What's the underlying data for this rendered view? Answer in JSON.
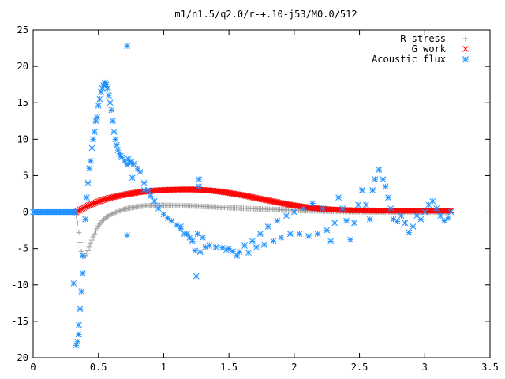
{
  "chart_data": {
    "type": "scatter",
    "title": "m1/n1.5/q2.0/r-+.10-j53/M0.0/512",
    "xlabel": "",
    "ylabel": "",
    "xlim": [
      0,
      3.5
    ],
    "ylim": [
      -20,
      25
    ],
    "x_ticks": [
      0,
      0.5,
      1,
      1.5,
      2,
      2.5,
      3,
      3.5
    ],
    "y_ticks": [
      -20,
      -15,
      -10,
      -5,
      0,
      5,
      10,
      15,
      20,
      25
    ],
    "x_tick_labels": [
      "0",
      "0.5",
      "1",
      "1.5",
      "2",
      "2.5",
      "3",
      "3.5"
    ],
    "y_tick_labels": [
      "-20",
      "-15",
      "-10",
      "-5",
      "0",
      "5",
      "10",
      "15",
      "20",
      "25"
    ],
    "grid": false,
    "legend_position": "top-right",
    "series": [
      {
        "name": "R stress",
        "marker": "plus",
        "color": "#a0a0a0",
        "points": [
          [
            0.33,
            -0.5
          ],
          [
            0.34,
            -1.5
          ],
          [
            0.35,
            -2.8
          ],
          [
            0.36,
            -4.2
          ],
          [
            0.37,
            -5.4
          ],
          [
            0.38,
            -6.1
          ],
          [
            0.39,
            -6.2
          ],
          [
            0.4,
            -6.0
          ],
          [
            0.42,
            -5.3
          ],
          [
            0.44,
            -4.3
          ],
          [
            0.46,
            -3.4
          ],
          [
            0.48,
            -2.6
          ],
          [
            0.5,
            -1.9
          ],
          [
            0.53,
            -1.2
          ],
          [
            0.56,
            -0.7
          ],
          [
            0.6,
            -0.3
          ],
          [
            0.65,
            0.1
          ],
          [
            0.7,
            0.4
          ],
          [
            0.75,
            0.6
          ],
          [
            0.8,
            0.75
          ],
          [
            0.85,
            0.85
          ],
          [
            0.9,
            0.9
          ],
          [
            0.95,
            0.92
          ],
          [
            1.0,
            0.92
          ],
          [
            1.1,
            0.9
          ],
          [
            1.2,
            0.85
          ],
          [
            1.3,
            0.78
          ],
          [
            1.4,
            0.7
          ],
          [
            1.5,
            0.6
          ],
          [
            1.6,
            0.52
          ],
          [
            1.7,
            0.45
          ],
          [
            1.8,
            0.38
          ],
          [
            1.9,
            0.32
          ],
          [
            2.0,
            0.25
          ],
          [
            2.1,
            0.2
          ],
          [
            2.2,
            0.15
          ],
          [
            2.3,
            0.1
          ],
          [
            2.4,
            0.07
          ],
          [
            2.5,
            0.05
          ],
          [
            2.6,
            0.03
          ],
          [
            2.7,
            0.02
          ],
          [
            2.8,
            0.01
          ],
          [
            2.9,
            0.0
          ],
          [
            3.0,
            0.0
          ],
          [
            3.1,
            0.0
          ],
          [
            3.2,
            0.0
          ]
        ]
      },
      {
        "name": "G work",
        "marker": "cross",
        "color": "#ff0000",
        "points": [
          [
            0.33,
            0.0
          ],
          [
            0.36,
            0.3
          ],
          [
            0.4,
            0.7
          ],
          [
            0.45,
            1.1
          ],
          [
            0.5,
            1.45
          ],
          [
            0.55,
            1.75
          ],
          [
            0.6,
            2.0
          ],
          [
            0.65,
            2.2
          ],
          [
            0.7,
            2.4
          ],
          [
            0.75,
            2.55
          ],
          [
            0.8,
            2.7
          ],
          [
            0.85,
            2.8
          ],
          [
            0.9,
            2.9
          ],
          [
            0.95,
            2.97
          ],
          [
            1.0,
            3.02
          ],
          [
            1.05,
            3.06
          ],
          [
            1.1,
            3.08
          ],
          [
            1.15,
            3.1
          ],
          [
            1.2,
            3.1
          ],
          [
            1.25,
            3.08
          ],
          [
            1.3,
            3.03
          ],
          [
            1.35,
            2.96
          ],
          [
            1.4,
            2.87
          ],
          [
            1.45,
            2.76
          ],
          [
            1.5,
            2.63
          ],
          [
            1.55,
            2.48
          ],
          [
            1.6,
            2.32
          ],
          [
            1.65,
            2.15
          ],
          [
            1.7,
            1.97
          ],
          [
            1.75,
            1.78
          ],
          [
            1.8,
            1.6
          ],
          [
            1.85,
            1.42
          ],
          [
            1.9,
            1.24
          ],
          [
            1.95,
            1.07
          ],
          [
            2.0,
            0.92
          ],
          [
            2.05,
            0.78
          ],
          [
            2.1,
            0.66
          ],
          [
            2.15,
            0.56
          ],
          [
            2.2,
            0.47
          ],
          [
            2.25,
            0.4
          ],
          [
            2.3,
            0.34
          ],
          [
            2.35,
            0.3
          ],
          [
            2.4,
            0.27
          ],
          [
            2.45,
            0.25
          ],
          [
            2.5,
            0.23
          ],
          [
            2.55,
            0.22
          ],
          [
            2.6,
            0.21
          ],
          [
            2.65,
            0.2
          ],
          [
            2.7,
            0.2
          ],
          [
            2.75,
            0.2
          ],
          [
            2.8,
            0.2
          ],
          [
            2.9,
            0.2
          ],
          [
            3.0,
            0.2
          ],
          [
            3.1,
            0.2
          ],
          [
            3.2,
            0.2
          ]
        ]
      },
      {
        "name": "Acoustic flux",
        "marker": "star",
        "color": "#1e90ff",
        "points": [
          [
            0.0,
            0.0
          ],
          [
            0.1,
            0.0
          ],
          [
            0.2,
            0.0
          ],
          [
            0.3,
            0.0
          ],
          [
            0.32,
            0.0
          ],
          [
            0.31,
            -9.8
          ],
          [
            0.33,
            -18.3
          ],
          [
            0.34,
            -17.8
          ],
          [
            0.35,
            -16.8
          ],
          [
            0.35,
            -15.5
          ],
          [
            0.36,
            -13.3
          ],
          [
            0.37,
            -10.9
          ],
          [
            0.38,
            -8.4
          ],
          [
            0.38,
            -6.0
          ],
          [
            0.4,
            -1.0
          ],
          [
            0.41,
            2.0
          ],
          [
            0.42,
            4.0
          ],
          [
            0.43,
            6.0
          ],
          [
            0.44,
            7.0
          ],
          [
            0.45,
            8.8
          ],
          [
            0.46,
            10.0
          ],
          [
            0.47,
            11.0
          ],
          [
            0.48,
            12.5
          ],
          [
            0.49,
            13.0
          ],
          [
            0.5,
            14.6
          ],
          [
            0.51,
            15.5
          ],
          [
            0.52,
            16.5
          ],
          [
            0.53,
            17.0
          ],
          [
            0.54,
            17.4
          ],
          [
            0.55,
            17.8
          ],
          [
            0.56,
            17.5
          ],
          [
            0.57,
            17.0
          ],
          [
            0.58,
            16.0
          ],
          [
            0.59,
            15.0
          ],
          [
            0.6,
            14.0
          ],
          [
            0.61,
            12.5
          ],
          [
            0.62,
            11.0
          ],
          [
            0.63,
            10.0
          ],
          [
            0.64,
            9.2
          ],
          [
            0.65,
            8.5
          ],
          [
            0.66,
            8.0
          ],
          [
            0.67,
            7.7
          ],
          [
            0.68,
            7.5
          ],
          [
            0.7,
            7.0
          ],
          [
            0.72,
            6.5
          ],
          [
            0.74,
            6.8
          ],
          [
            0.75,
            6.8
          ],
          [
            0.77,
            6.6
          ],
          [
            0.8,
            6.0
          ],
          [
            0.82,
            5.5
          ],
          [
            0.85,
            4.0
          ],
          [
            0.88,
            3.0
          ],
          [
            0.9,
            2.2
          ],
          [
            0.93,
            1.5
          ],
          [
            0.96,
            0.5
          ],
          [
            1.0,
            -0.3
          ],
          [
            1.03,
            -0.8
          ],
          [
            1.06,
            -1.2
          ],
          [
            1.1,
            -1.8
          ],
          [
            1.13,
            -2.3
          ],
          [
            1.16,
            -3.0
          ],
          [
            1.2,
            -3.5
          ],
          [
            1.22,
            -4.0
          ],
          [
            1.24,
            -5.3
          ],
          [
            1.26,
            -3.0
          ],
          [
            1.28,
            -5.5
          ],
          [
            1.3,
            -3.5
          ],
          [
            1.32,
            -4.8
          ],
          [
            1.35,
            -4.6
          ],
          [
            1.4,
            -4.8
          ],
          [
            1.45,
            -4.9
          ],
          [
            1.48,
            -5.2
          ],
          [
            1.5,
            -5.0
          ],
          [
            1.53,
            -5.4
          ],
          [
            1.56,
            -6.0
          ],
          [
            1.58,
            -5.5
          ],
          [
            1.62,
            -4.6
          ],
          [
            1.65,
            -5.6
          ],
          [
            1.68,
            -4.0
          ],
          [
            1.71,
            -4.8
          ],
          [
            1.74,
            -3.0
          ],
          [
            1.77,
            -4.5
          ],
          [
            1.8,
            -2.0
          ],
          [
            1.84,
            -4.0
          ],
          [
            1.87,
            -1.2
          ],
          [
            1.9,
            -3.5
          ],
          [
            1.94,
            -0.5
          ],
          [
            1.97,
            -3.0
          ],
          [
            2.0,
            0.0
          ],
          [
            2.04,
            -3.0
          ],
          [
            2.07,
            0.5
          ],
          [
            2.11,
            -3.3
          ],
          [
            2.14,
            1.2
          ],
          [
            2.18,
            -3.0
          ],
          [
            2.22,
            0.5
          ],
          [
            2.25,
            -2.5
          ],
          [
            2.28,
            -4.0
          ],
          [
            2.31,
            -1.5
          ],
          [
            2.34,
            2.0
          ],
          [
            2.37,
            0.5
          ],
          [
            2.4,
            -1.2
          ],
          [
            2.43,
            -3.8
          ],
          [
            2.46,
            -1.5
          ],
          [
            2.49,
            1.0
          ],
          [
            2.52,
            3.0
          ],
          [
            2.55,
            1.0
          ],
          [
            2.58,
            -1.0
          ],
          [
            2.6,
            3.0
          ],
          [
            2.62,
            4.5
          ],
          [
            2.65,
            5.8
          ],
          [
            2.68,
            4.5
          ],
          [
            2.7,
            3.5
          ],
          [
            2.72,
            2.0
          ],
          [
            2.74,
            0.5
          ],
          [
            2.76,
            -1.0
          ],
          [
            2.79,
            -1.3
          ],
          [
            2.82,
            -0.5
          ],
          [
            2.85,
            -1.5
          ],
          [
            2.88,
            -2.8
          ],
          [
            2.91,
            -2.0
          ],
          [
            2.94,
            -0.5
          ],
          [
            2.97,
            -1.0
          ],
          [
            3.0,
            0.0
          ],
          [
            3.03,
            1.0
          ],
          [
            3.06,
            1.5
          ],
          [
            3.09,
            0.5
          ],
          [
            3.12,
            -0.5
          ],
          [
            3.15,
            -1.2
          ],
          [
            3.18,
            -0.8
          ],
          [
            3.2,
            0.0
          ],
          [
            0.72,
            22.8
          ],
          [
            0.72,
            -3.2
          ],
          [
            1.25,
            -8.8
          ],
          [
            1.27,
            3.5
          ],
          [
            1.27,
            4.5
          ],
          [
            1.13,
            -2.0
          ],
          [
            1.18,
            -3.0
          ],
          [
            0.73,
            7.3
          ],
          [
            0.76,
            4.7
          ],
          [
            0.85,
            3.0
          ]
        ]
      }
    ]
  }
}
